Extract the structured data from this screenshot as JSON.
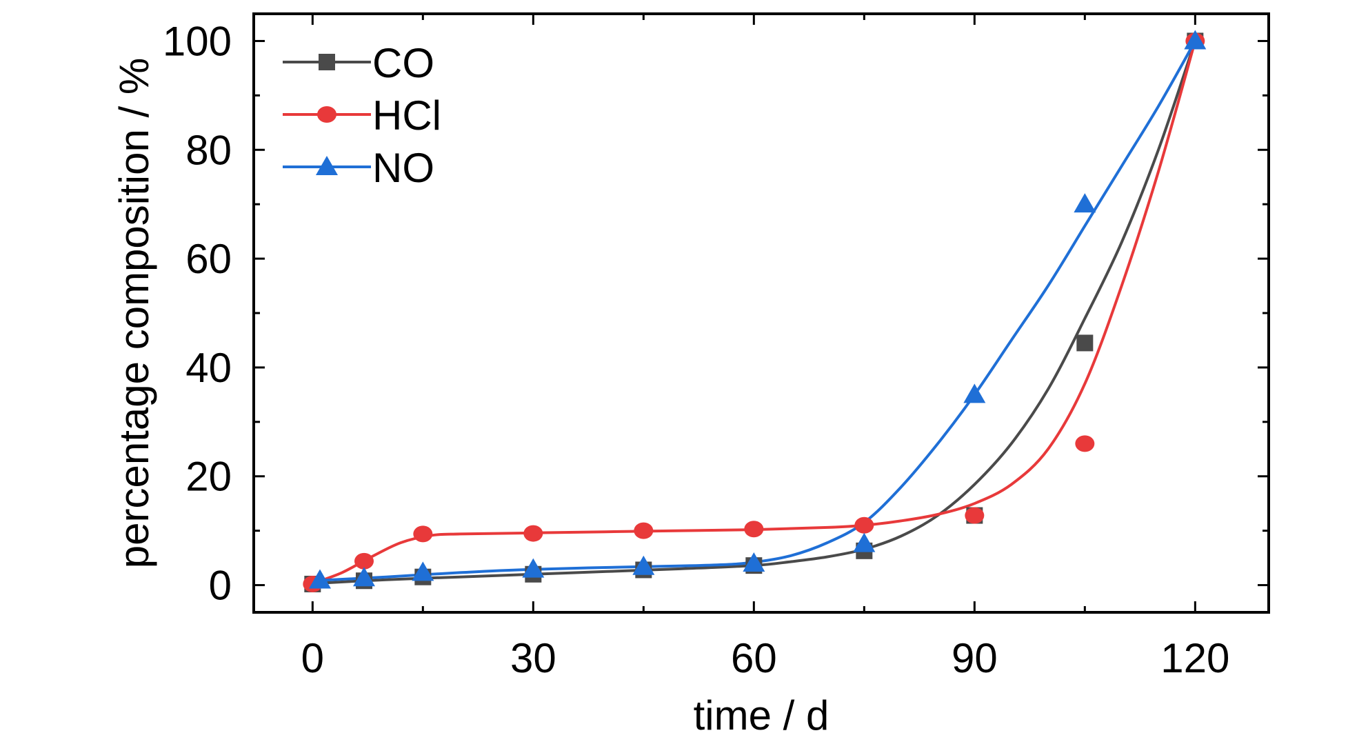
{
  "chart_data": {
    "type": "line",
    "title": "",
    "xlabel": "time / d",
    "ylabel": "percentage composition / %",
    "xlim": [
      -8,
      130
    ],
    "ylim": [
      -5,
      105
    ],
    "xticks": [
      0,
      30,
      60,
      90,
      120
    ],
    "yticks": [
      0,
      20,
      40,
      60,
      80,
      100
    ],
    "x_minor_step": 15,
    "y_minor_step": 10,
    "grid": false,
    "legend_position": "top-left",
    "series": [
      {
        "name": "CO",
        "color": "#4a4a4a",
        "marker": "square",
        "x": [
          0,
          7,
          15,
          30,
          45,
          60,
          75,
          90,
          105,
          120
        ],
        "y": [
          0.2,
          0.8,
          1.5,
          2.0,
          2.8,
          3.6,
          6.3,
          12.8,
          44.5,
          100
        ],
        "fit_x": [
          0,
          10,
          20,
          30,
          40,
          50,
          60,
          65,
          70,
          75,
          80,
          85,
          90,
          95,
          100,
          105,
          110,
          115,
          120
        ],
        "fit_y": [
          0.3,
          1.0,
          1.5,
          2.0,
          2.5,
          3.0,
          3.6,
          4.3,
          5.2,
          6.6,
          9.0,
          12.8,
          18.5,
          26,
          36,
          49,
          63,
          80,
          100
        ]
      },
      {
        "name": "HCl",
        "color": "#e8393a",
        "marker": "circle",
        "x": [
          0,
          7,
          15,
          30,
          45,
          60,
          75,
          90,
          105,
          120
        ],
        "y": [
          0.2,
          4.4,
          9.4,
          9.5,
          10.0,
          10.3,
          11.0,
          12.8,
          26.0,
          100
        ],
        "fit_x": [
          0,
          4,
          8,
          12,
          16,
          20,
          30,
          45,
          60,
          70,
          75,
          80,
          85,
          90,
          95,
          100,
          105,
          110,
          115,
          120
        ],
        "fit_y": [
          0.3,
          2.3,
          5.2,
          7.8,
          9.1,
          9.4,
          9.6,
          9.9,
          10.2,
          10.6,
          11.0,
          11.8,
          13.0,
          15.0,
          18.5,
          25,
          37,
          55,
          76,
          100
        ]
      },
      {
        "name": "NO",
        "color": "#1f6fd6",
        "marker": "triangle",
        "x": [
          1,
          7,
          15,
          30,
          45,
          60,
          75,
          90,
          105,
          120
        ],
        "y": [
          0.9,
          1.3,
          2.3,
          2.9,
          3.4,
          4.0,
          7.6,
          35.0,
          70.0,
          100
        ],
        "fit_x": [
          0,
          10,
          20,
          30,
          45,
          55,
          60,
          65,
          70,
          75,
          80,
          85,
          90,
          95,
          100,
          105,
          110,
          115,
          120
        ],
        "fit_y": [
          0.8,
          1.5,
          2.3,
          2.9,
          3.4,
          3.7,
          4.2,
          5.4,
          7.8,
          11.5,
          18,
          26,
          35,
          45,
          55,
          66,
          77,
          88,
          100
        ]
      }
    ]
  }
}
